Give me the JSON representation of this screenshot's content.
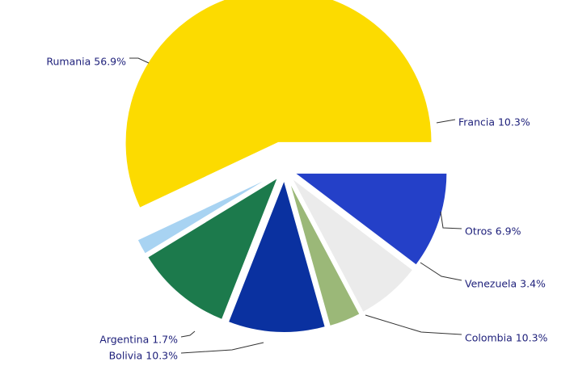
{
  "chart_data": {
    "type": "pie",
    "title": "",
    "exploded": true,
    "slices": [
      {
        "label": "Francia 10.3%",
        "name": "Francia",
        "value": 10.3,
        "color": "#2440c8"
      },
      {
        "label": "Otros 6.9%",
        "name": "Otros",
        "value": 6.9,
        "color": "#ebebeb"
      },
      {
        "label": "Venezuela 3.4%",
        "name": "Venezuela",
        "value": 3.4,
        "color": "#9bb878"
      },
      {
        "label": "Colombia 10.3%",
        "name": "Colombia",
        "value": 10.3,
        "color": "#0a31a0"
      },
      {
        "label": "Bolivia 10.3%",
        "name": "Bolivia",
        "value": 10.3,
        "color": "#1c7a4c"
      },
      {
        "label": "Argentina 1.7%",
        "name": "Argentina",
        "value": 1.7,
        "color": "#a8d3f2"
      },
      {
        "label": "Rumania 56.9%",
        "name": "Rumania",
        "value": 56.9,
        "color": "#fcdb00"
      }
    ]
  }
}
